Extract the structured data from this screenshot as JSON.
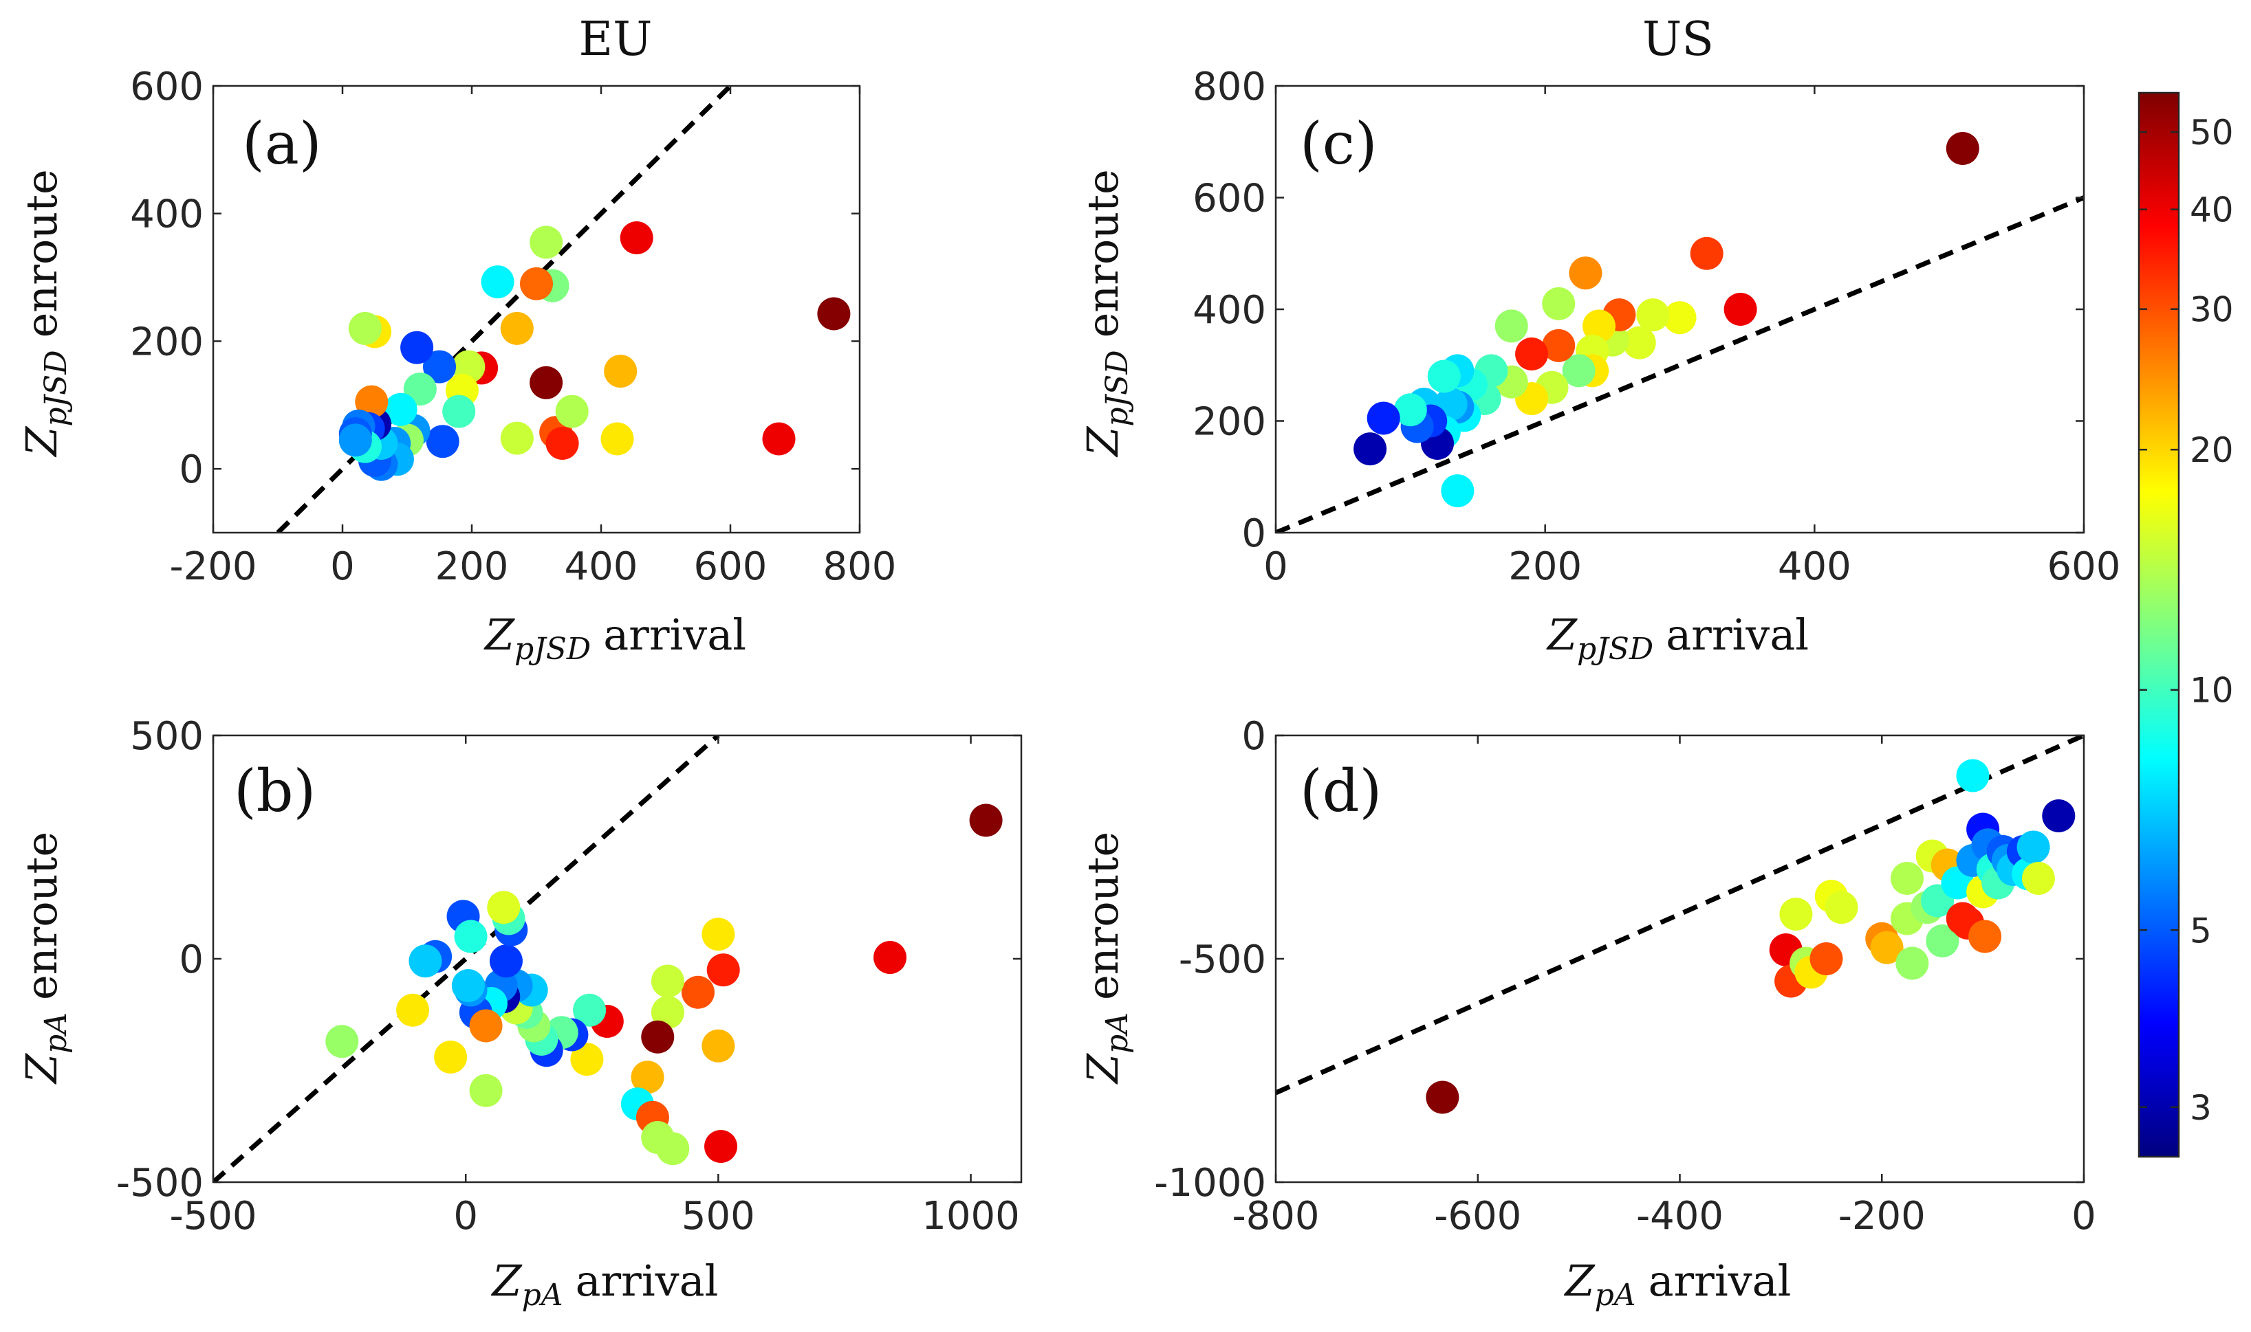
{
  "colors": {
    "axis": "#262626",
    "diagonal": "#000000",
    "background": "#ffffff"
  },
  "colorbar": {
    "scale": "log",
    "range": [
      2.6,
      56
    ],
    "ticks": [
      3,
      5,
      10,
      20,
      30,
      40,
      50
    ],
    "tick_labels": [
      "3",
      "5",
      "10",
      "20",
      "30",
      "40",
      "50"
    ],
    "colormap": "jet"
  },
  "chart_data": [
    {
      "id": "a",
      "type": "scatter",
      "tag": "(a)",
      "column_title": "EU",
      "xlabel": {
        "sym": "Z",
        "sub": "pJSD",
        "word": "arrival"
      },
      "ylabel": {
        "sym": "Z",
        "sub": "pJSD",
        "word": "enroute"
      },
      "xlim": [
        -200,
        800
      ],
      "ylim": [
        -100,
        600
      ],
      "xticks": [
        -200,
        0,
        200,
        400,
        600,
        800
      ],
      "xtick_labels": [
        "-200",
        "0",
        "200",
        "400",
        "600",
        "800"
      ],
      "yticks": [
        0,
        200,
        400,
        600
      ],
      "ytick_labels": [
        "0",
        "200",
        "400",
        "600"
      ],
      "diagonal": true,
      "points": [
        [
          760,
          243,
          55
        ],
        [
          455,
          362,
          40
        ],
        [
          315,
          355,
          14
        ],
        [
          325,
          287,
          12
        ],
        [
          300,
          290,
          28
        ],
        [
          240,
          293,
          8
        ],
        [
          270,
          220,
          22
        ],
        [
          315,
          135,
          55
        ],
        [
          330,
          57,
          30
        ],
        [
          340,
          40,
          35
        ],
        [
          355,
          90,
          14
        ],
        [
          270,
          48,
          15
        ],
        [
          430,
          153,
          22
        ],
        [
          425,
          47,
          19
        ],
        [
          675,
          47,
          40
        ],
        [
          215,
          158,
          40
        ],
        [
          195,
          160,
          15
        ],
        [
          185,
          123,
          17
        ],
        [
          180,
          90,
          10
        ],
        [
          150,
          160,
          5
        ],
        [
          115,
          190,
          4.5
        ],
        [
          155,
          43,
          4.8
        ],
        [
          120,
          125,
          11
        ],
        [
          110,
          60,
          6
        ],
        [
          100,
          45,
          13
        ],
        [
          90,
          93,
          8
        ],
        [
          80,
          40,
          6
        ],
        [
          85,
          15,
          6.5
        ],
        [
          60,
          7,
          5.5
        ],
        [
          50,
          13,
          5
        ],
        [
          60,
          40,
          7
        ],
        [
          50,
          70,
          3
        ],
        [
          45,
          105,
          26
        ],
        [
          40,
          63,
          4.6
        ],
        [
          25,
          67,
          5.5
        ],
        [
          35,
          35,
          9
        ],
        [
          20,
          55,
          5
        ],
        [
          20,
          45,
          6
        ],
        [
          50,
          215,
          19
        ],
        [
          35,
          220,
          14
        ]
      ]
    },
    {
      "id": "b",
      "type": "scatter",
      "tag": "(b)",
      "column_title": "",
      "xlabel": {
        "sym": "Z",
        "sub": "pA",
        "word": "arrival"
      },
      "ylabel": {
        "sym": "Z",
        "sub": "pA",
        "word": "enroute"
      },
      "xlim": [
        -500,
        1100
      ],
      "ylim": [
        -500,
        500
      ],
      "xticks": [
        -500,
        0,
        500,
        1000
      ],
      "xtick_labels": [
        "-500",
        "0",
        "500",
        "1000"
      ],
      "yticks": [
        -500,
        0,
        500
      ],
      "ytick_labels": [
        "-500",
        "0",
        "500"
      ],
      "diagonal": true,
      "points": [
        [
          1030,
          310,
          55
        ],
        [
          840,
          3,
          40
        ],
        [
          500,
          55,
          19
        ],
        [
          510,
          -25,
          35
        ],
        [
          460,
          -75,
          30
        ],
        [
          500,
          -195,
          22
        ],
        [
          400,
          -50,
          15
        ],
        [
          400,
          -120,
          15
        ],
        [
          380,
          -175,
          55
        ],
        [
          360,
          -265,
          22
        ],
        [
          340,
          -325,
          8
        ],
        [
          370,
          -355,
          30
        ],
        [
          380,
          -400,
          14
        ],
        [
          410,
          -425,
          14
        ],
        [
          505,
          -420,
          40
        ],
        [
          280,
          -140,
          40
        ],
        [
          245,
          -115,
          10
        ],
        [
          240,
          -225,
          19
        ],
        [
          210,
          -170,
          4.5
        ],
        [
          190,
          -165,
          11
        ],
        [
          160,
          -205,
          4.5
        ],
        [
          150,
          -180,
          10
        ],
        [
          135,
          -150,
          13
        ],
        [
          120,
          -120,
          11
        ],
        [
          100,
          -110,
          15
        ],
        [
          130,
          -70,
          7
        ],
        [
          100,
          -60,
          6
        ],
        [
          75,
          -85,
          3
        ],
        [
          70,
          -60,
          5.5
        ],
        [
          50,
          -100,
          8
        ],
        [
          20,
          -120,
          4.8
        ],
        [
          10,
          -70,
          6
        ],
        [
          5,
          -60,
          7
        ],
        [
          80,
          -5,
          4.5
        ],
        [
          90,
          65,
          4.8
        ],
        [
          85,
          90,
          10
        ],
        [
          75,
          115,
          16
        ],
        [
          -5,
          95,
          4.8
        ],
        [
          10,
          50,
          9
        ],
        [
          -60,
          5,
          5
        ],
        [
          -80,
          -5,
          7
        ],
        [
          -105,
          -115,
          19
        ],
        [
          -30,
          -220,
          19
        ],
        [
          40,
          -150,
          26
        ],
        [
          40,
          -295,
          14
        ],
        [
          -245,
          -185,
          13
        ]
      ]
    },
    {
      "id": "c",
      "type": "scatter",
      "tag": "(c)",
      "column_title": "US",
      "xlabel": {
        "sym": "Z",
        "sub": "pJSD",
        "word": "arrival"
      },
      "ylabel": {
        "sym": "Z",
        "sub": "pJSD",
        "word": "enroute"
      },
      "xlim": [
        0,
        600
      ],
      "ylim": [
        0,
        800
      ],
      "xticks": [
        0,
        200,
        400,
        600
      ],
      "xtick_labels": [
        "0",
        "200",
        "400",
        "600"
      ],
      "yticks": [
        0,
        200,
        400,
        600,
        800
      ],
      "ytick_labels": [
        "0",
        "200",
        "400",
        "600",
        "800"
      ],
      "diagonal": true,
      "points": [
        [
          510,
          688,
          55
        ],
        [
          345,
          400,
          40
        ],
        [
          320,
          500,
          32
        ],
        [
          300,
          385,
          17
        ],
        [
          280,
          390,
          16
        ],
        [
          270,
          340,
          16
        ],
        [
          250,
          345,
          15
        ],
        [
          255,
          390,
          30
        ],
        [
          240,
          370,
          19
        ],
        [
          235,
          325,
          16
        ],
        [
          235,
          290,
          19
        ],
        [
          230,
          465,
          25
        ],
        [
          225,
          290,
          12
        ],
        [
          210,
          410,
          14
        ],
        [
          210,
          335,
          30
        ],
        [
          205,
          260,
          15
        ],
        [
          190,
          320,
          35
        ],
        [
          190,
          240,
          19
        ],
        [
          175,
          370,
          13
        ],
        [
          175,
          270,
          14
        ],
        [
          160,
          290,
          10
        ],
        [
          155,
          240,
          10
        ],
        [
          145,
          265,
          9
        ],
        [
          140,
          210,
          8
        ],
        [
          135,
          290,
          7.5
        ],
        [
          135,
          225,
          6
        ],
        [
          130,
          230,
          7
        ],
        [
          125,
          180,
          8
        ],
        [
          125,
          280,
          9
        ],
        [
          120,
          160,
          3
        ],
        [
          110,
          230,
          7
        ],
        [
          115,
          200,
          4.5
        ],
        [
          105,
          190,
          5
        ],
        [
          100,
          220,
          9
        ],
        [
          80,
          205,
          4.2
        ],
        [
          70,
          150,
          3
        ],
        [
          135,
          75,
          8
        ]
      ]
    },
    {
      "id": "d",
      "type": "scatter",
      "tag": "(d)",
      "column_title": "",
      "xlabel": {
        "sym": "Z",
        "sub": "pA",
        "word": "arrival"
      },
      "ylabel": {
        "sym": "Z",
        "sub": "pA",
        "word": "enroute"
      },
      "xlim": [
        -800,
        0
      ],
      "ylim": [
        -1000,
        0
      ],
      "xticks": [
        -800,
        -600,
        -400,
        -200,
        0
      ],
      "xtick_labels": [
        "-800",
        "-600",
        "-400",
        "-200",
        "0"
      ],
      "yticks": [
        -1000,
        -500,
        0
      ],
      "ytick_labels": [
        "-1000",
        "-500",
        "0"
      ],
      "diagonal": true,
      "points": [
        [
          -635,
          -810,
          55
        ],
        [
          -295,
          -480,
          40
        ],
        [
          -290,
          -550,
          32
        ],
        [
          -285,
          -400,
          16
        ],
        [
          -275,
          -510,
          14
        ],
        [
          -270,
          -530,
          19
        ],
        [
          -255,
          -500,
          30
        ],
        [
          -250,
          -360,
          17
        ],
        [
          -240,
          -385,
          16
        ],
        [
          -200,
          -455,
          25
        ],
        [
          -195,
          -475,
          22
        ],
        [
          -175,
          -320,
          14
        ],
        [
          -175,
          -410,
          14
        ],
        [
          -170,
          -510,
          13
        ],
        [
          -155,
          -385,
          13
        ],
        [
          -150,
          -270,
          16
        ],
        [
          -145,
          -370,
          10
        ],
        [
          -140,
          -460,
          12
        ],
        [
          -135,
          -290,
          22
        ],
        [
          -125,
          -330,
          8
        ],
        [
          -120,
          -410,
          35
        ],
        [
          -115,
          -420,
          35
        ],
        [
          -110,
          -280,
          6
        ],
        [
          -110,
          -90,
          8
        ],
        [
          -100,
          -210,
          4
        ],
        [
          -100,
          -350,
          17
        ],
        [
          -98,
          -450,
          28
        ],
        [
          -95,
          -245,
          5.5
        ],
        [
          -90,
          -300,
          9
        ],
        [
          -85,
          -330,
          10
        ],
        [
          -80,
          -260,
          5
        ],
        [
          -75,
          -280,
          6
        ],
        [
          -70,
          -300,
          7
        ],
        [
          -60,
          -260,
          4.6
        ],
        [
          -55,
          -310,
          8
        ],
        [
          -50,
          -250,
          7
        ],
        [
          -45,
          -320,
          16
        ],
        [
          -25,
          -180,
          3
        ]
      ]
    }
  ]
}
